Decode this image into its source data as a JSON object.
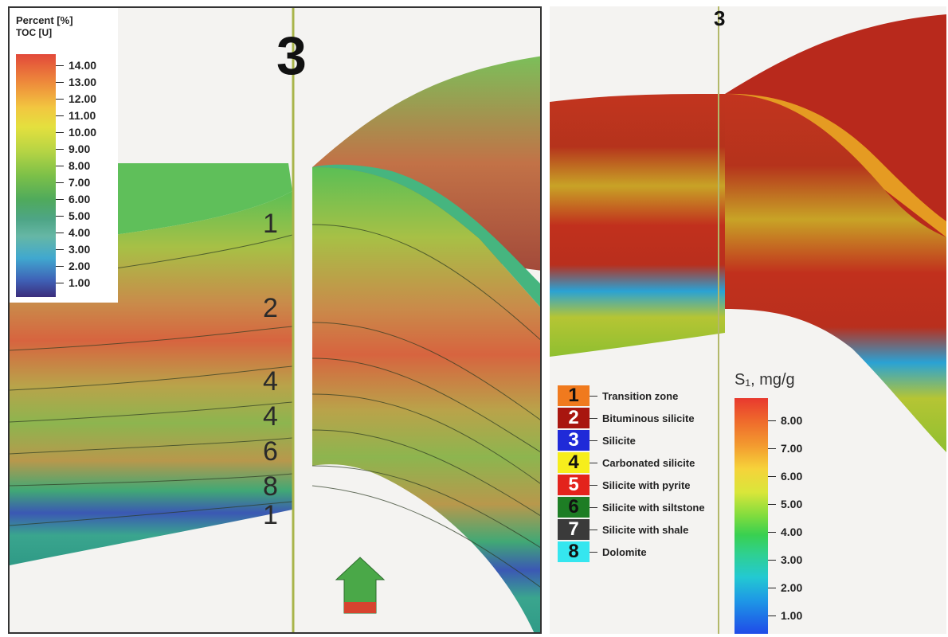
{
  "left": {
    "well_number": "3",
    "legend": {
      "title": "Percent [%]",
      "subtitle": "TOC [U]",
      "ticks": [
        "14.00",
        "13.00",
        "12.00",
        "11.00",
        "10.00",
        "9.00",
        "8.00",
        "7.00",
        "6.00",
        "5.00",
        "4.00",
        "3.00",
        "2.00",
        "1.00"
      ]
    },
    "layer_labels": [
      "1",
      "2",
      "4",
      "4",
      "6",
      "8",
      "1"
    ]
  },
  "right": {
    "well_number": "3",
    "facies_legend": [
      {
        "num": "1",
        "label": "Transition zone",
        "color": "#f07a1e"
      },
      {
        "num": "2",
        "label": "Bituminous silicite",
        "color": "#a8160f"
      },
      {
        "num": "3",
        "label": "Silicite",
        "color": "#1f2ad8"
      },
      {
        "num": "4",
        "label": "Carbonated silicite",
        "color": "#f6ee1c"
      },
      {
        "num": "5",
        "label": "Silicite with pyrite",
        "color": "#e3231c"
      },
      {
        "num": "6",
        "label": "Silicite with siltstone",
        "color": "#1d7d24"
      },
      {
        "num": "7",
        "label": "Silicite with shale",
        "color": "#3a3a3a"
      },
      {
        "num": "8",
        "label": "Dolomite",
        "color": "#35e6ef"
      }
    ],
    "scale_title": "S₁, mg/g",
    "ticks": [
      "8.00",
      "7.00",
      "6.00",
      "5.00",
      "4.00",
      "3.00",
      "2.00",
      "1.00"
    ]
  }
}
